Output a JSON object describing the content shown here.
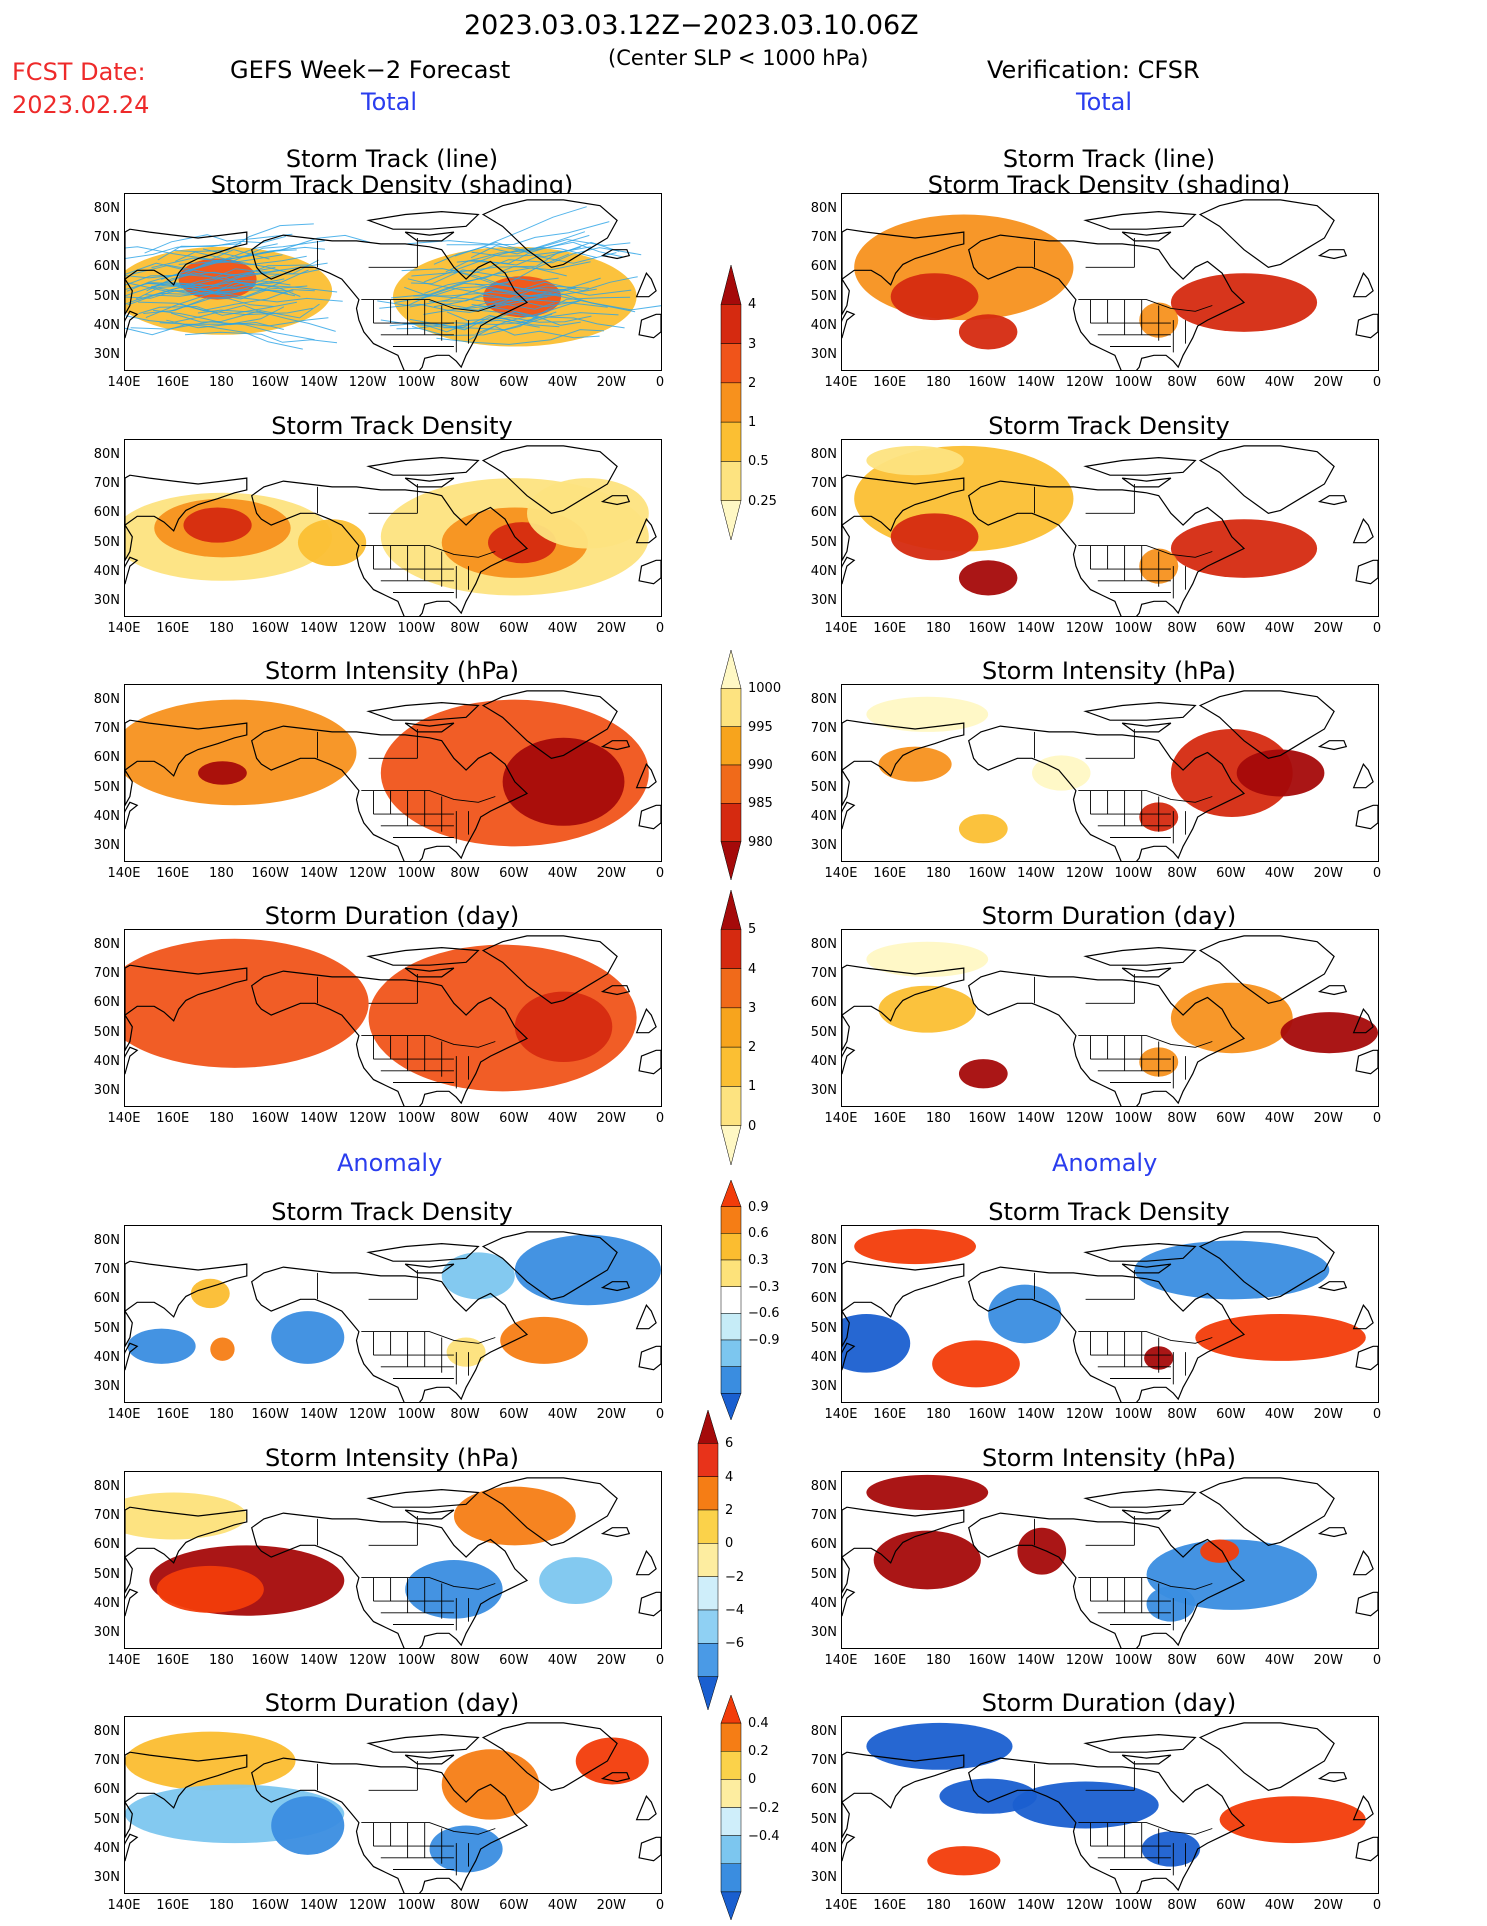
{
  "header": {
    "period": "2023.03.03.12Z−2023.03.10.06Z",
    "subtitle": "(Center SLP < 1000 hPa)",
    "fcst_label": "FCST Date:",
    "fcst_date": "2023.02.24",
    "left_title": "GEFS Week−2 Forecast",
    "right_title": "Verification: CFSR",
    "left_total": "Total",
    "right_total": "Total",
    "left_anomaly": "Anomaly",
    "right_anomaly": "Anomaly"
  },
  "panel_titles": {
    "track_line": "Storm Track (line)",
    "track_shading": "Storm Track Density (shading)",
    "density": "Storm Track Density",
    "intensity": "Storm Intensity (hPa)",
    "duration": "Storm Duration (day)"
  },
  "axes": {
    "lat_labels": [
      "80N",
      "70N",
      "60N",
      "50N",
      "40N",
      "30N"
    ],
    "lon_labels": [
      "140E",
      "160E",
      "180",
      "160W",
      "140W",
      "120W",
      "100W",
      "80W",
      "60W",
      "40W",
      "20W",
      "0"
    ]
  },
  "colorbars": {
    "density": {
      "labels": [
        "4",
        "3",
        "2",
        "1",
        "0.5",
        "0.25"
      ],
      "colors": [
        "#a50a0a",
        "#d52a10",
        "#f0541a",
        "#f7911d",
        "#fbbf33",
        "#fde380",
        "#fff8c4"
      ]
    },
    "intensity": {
      "labels": [
        "1000",
        "995",
        "990",
        "985",
        "980"
      ],
      "colors": [
        "#fff8c4",
        "#fde380",
        "#f7a41d",
        "#f06a1a",
        "#d52a10",
        "#a50a0a"
      ]
    },
    "duration": {
      "labels": [
        "5",
        "4",
        "3",
        "2",
        "1",
        "0"
      ],
      "colors": [
        "#a50a0a",
        "#d52a10",
        "#f06a1a",
        "#f7a41d",
        "#fbbf33",
        "#fde380",
        "#fff8c4"
      ]
    },
    "anom_density": {
      "labels": [
        "0.9",
        "0.6",
        "0.3",
        "−0.3",
        "−0.6",
        "−0.9"
      ],
      "colors": [
        "#f23c0a",
        "#f57d15",
        "#fbbd30",
        "#fde27a",
        "#ffffff",
        "#c6ecf7",
        "#7cc6ef",
        "#3a8de0",
        "#1a5fd0"
      ]
    },
    "anom_intensity": {
      "labels": [
        "6",
        "4",
        "2",
        "0",
        "−2",
        "−4",
        "−6"
      ],
      "colors": [
        "#a50a0a",
        "#e8331a",
        "#f57d15",
        "#fbd24a",
        "#fdeda0",
        "#cfeefa",
        "#8fd0f3",
        "#4a9ae6",
        "#1a5fd0"
      ]
    },
    "anom_duration": {
      "labels": [
        "0.4",
        "0.2",
        "0",
        "−0.2",
        "−0.4"
      ],
      "colors": [
        "#f23c0a",
        "#f57d15",
        "#fbd24a",
        "#fdeda0",
        "#cfeefa",
        "#7cc6ef",
        "#3a8de0",
        "#1a5fd0"
      ]
    }
  },
  "colors": {
    "accent_red": "#ee2a2a",
    "accent_blue": "#2a3dee",
    "track_line": "#29a3e6"
  }
}
